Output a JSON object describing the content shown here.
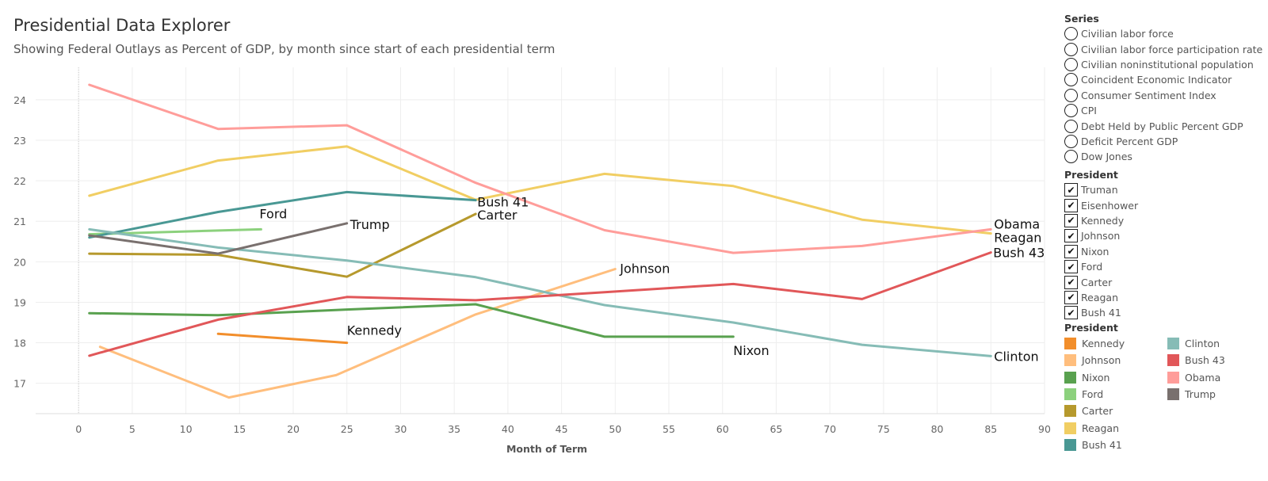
{
  "header": {
    "title": "Presidential Data Explorer",
    "subtitle": "Showing Federal Outlays as Percent of GDP, by month since start of each presidential term"
  },
  "series_panel": {
    "title": "Series",
    "items": [
      "Civilian labor force",
      "Civilian labor force participation rate",
      "Civilian noninstitutional population",
      "Coincident Economic Indicator",
      "Consumer Sentiment Index",
      "CPI",
      "Debt Held by Public Percent GDP",
      "Deficit Percent GDP",
      "Dow Jones"
    ]
  },
  "president_filter": {
    "title": "President",
    "items": [
      "Truman",
      "Eisenhower",
      "Kennedy",
      "Johnson",
      "Nixon",
      "Ford",
      "Carter",
      "Reagan",
      "Bush 41"
    ],
    "checked": true
  },
  "color_legend": {
    "title": "President",
    "items": [
      {
        "label": "Kennedy",
        "color": "#f28e2b"
      },
      {
        "label": "Johnson",
        "color": "#ffbe7d"
      },
      {
        "label": "Nixon",
        "color": "#59a14f"
      },
      {
        "label": "Ford",
        "color": "#8cd17d"
      },
      {
        "label": "Carter",
        "color": "#b6992d"
      },
      {
        "label": "Reagan",
        "color": "#f1ce63"
      },
      {
        "label": "Bush 41",
        "color": "#499894"
      },
      {
        "label": "Clinton",
        "color": "#86bcb6"
      },
      {
        "label": "Bush 43",
        "color": "#e15759"
      },
      {
        "label": "Obama",
        "color": "#ff9d9a"
      },
      {
        "label": "Trump",
        "color": "#79706e"
      }
    ]
  },
  "chart_data": {
    "type": "line",
    "xlabel": "Month of Term",
    "ylabel": "",
    "xlim": [
      -4,
      90
    ],
    "ylim": [
      16.25,
      24.8
    ],
    "xticks": [
      0,
      5,
      10,
      15,
      20,
      25,
      30,
      35,
      40,
      45,
      50,
      55,
      60,
      65,
      70,
      75,
      80,
      85,
      90
    ],
    "yticks": [
      17,
      18,
      19,
      20,
      21,
      22,
      23,
      24
    ],
    "grid": true,
    "series": [
      {
        "name": "Kennedy",
        "color": "#f28e2b",
        "x": [
          13,
          25
        ],
        "y": [
          18.22,
          18.0
        ],
        "label": "Kennedy"
      },
      {
        "name": "Johnson",
        "color": "#ffbe7d",
        "x": [
          2,
          14,
          24,
          37,
          50
        ],
        "y": [
          17.9,
          16.65,
          17.2,
          18.7,
          19.82
        ],
        "label": "Johnson"
      },
      {
        "name": "Nixon",
        "color": "#59a14f",
        "x": [
          1,
          13,
          25,
          37,
          49,
          61
        ],
        "y": [
          18.73,
          18.68,
          18.82,
          18.95,
          18.15,
          18.15
        ],
        "label": "Nixon"
      },
      {
        "name": "Ford",
        "color": "#8cd17d",
        "x": [
          1,
          17
        ],
        "y": [
          20.68,
          20.8
        ],
        "label": "Ford"
      },
      {
        "name": "Carter",
        "color": "#b6992d",
        "x": [
          1,
          13,
          25,
          37
        ],
        "y": [
          20.2,
          20.17,
          19.63,
          21.18
        ],
        "label": "Carter"
      },
      {
        "name": "Reagan",
        "color": "#f1ce63",
        "x": [
          1,
          13,
          25,
          37,
          49,
          61,
          73,
          85
        ],
        "y": [
          21.63,
          22.5,
          22.85,
          21.53,
          22.17,
          21.87,
          21.04,
          20.7
        ],
        "label": "Reagan"
      },
      {
        "name": "Bush 41",
        "color": "#499894",
        "x": [
          1,
          13,
          25,
          37
        ],
        "y": [
          20.6,
          21.23,
          21.72,
          21.52
        ],
        "label": "Bush 41"
      },
      {
        "name": "Clinton",
        "color": "#86bcb6",
        "x": [
          1,
          13,
          25,
          37,
          49,
          61,
          73,
          85
        ],
        "y": [
          20.8,
          20.35,
          20.03,
          19.62,
          18.93,
          18.5,
          17.95,
          17.67
        ],
        "label": "Clinton"
      },
      {
        "name": "Bush 43",
        "color": "#e15759",
        "x": [
          1,
          13,
          25,
          37,
          49,
          61,
          73,
          85
        ],
        "y": [
          17.68,
          18.57,
          19.13,
          19.05,
          19.25,
          19.45,
          19.08,
          20.23
        ],
        "label": "Bush 43"
      },
      {
        "name": "Obama",
        "color": "#ff9d9a",
        "x": [
          1,
          13,
          25,
          37,
          49,
          61,
          73,
          85
        ],
        "y": [
          24.37,
          23.28,
          23.37,
          21.95,
          20.78,
          20.22,
          20.39,
          20.8
        ],
        "label": "Obama"
      },
      {
        "name": "Trump",
        "color": "#79706e",
        "x": [
          1,
          13,
          25
        ],
        "y": [
          20.65,
          20.2,
          20.95
        ],
        "label": "Trump"
      }
    ]
  }
}
